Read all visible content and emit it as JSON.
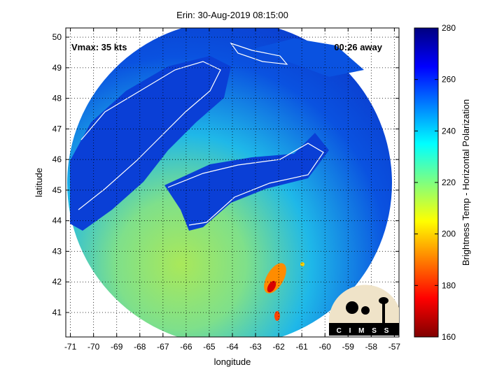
{
  "chart_data": {
    "type": "heatmap",
    "title": "Erin: 30-Aug-2019 08:15:00",
    "xlabel": "longitude",
    "ylabel": "latitude",
    "xlim": [
      -71.2,
      -56.8
    ],
    "ylim": [
      40.2,
      50.3
    ],
    "x_ticks": [
      -71,
      -70,
      -69,
      -68,
      -67,
      -66,
      -65,
      -64,
      -63,
      -62,
      -61,
      -60,
      -59,
      -58,
      -57
    ],
    "y_ticks": [
      41,
      42,
      43,
      44,
      45,
      46,
      47,
      48,
      49,
      50
    ],
    "grid": true,
    "colorbar": {
      "label": "Brightness Temp - Horizontal Polarization",
      "min": 160,
      "max": 280,
      "ticks": [
        160,
        180,
        200,
        220,
        240,
        260,
        280
      ]
    },
    "annotations": {
      "vmax": "Vmax: 35 kts",
      "time_away": "00:26 away"
    },
    "logo_text": "CIMSS"
  }
}
